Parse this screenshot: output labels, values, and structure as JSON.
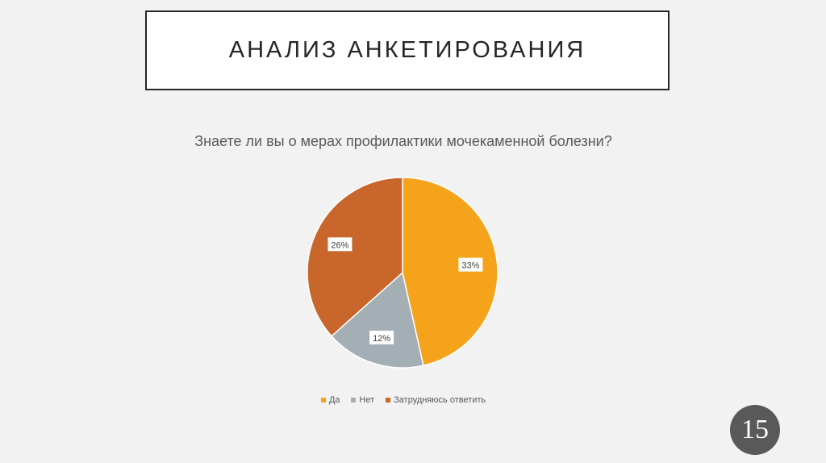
{
  "slide": {
    "title": "АНАЛИЗ АНКЕТИРОВАНИЯ",
    "page_number": "15"
  },
  "chart_data": {
    "type": "pie",
    "title": "Знаете ли вы о мерах профилактики мочекаменной болезни?",
    "categories": [
      "Да",
      "Нет",
      "Затрудняюсь ответить"
    ],
    "values": [
      33,
      12,
      26
    ],
    "labels": [
      "33%",
      "12%",
      "26%"
    ],
    "colors": [
      "#F5A31A",
      "#A3AFB5",
      "#C8662C"
    ],
    "legend": "bottom"
  }
}
